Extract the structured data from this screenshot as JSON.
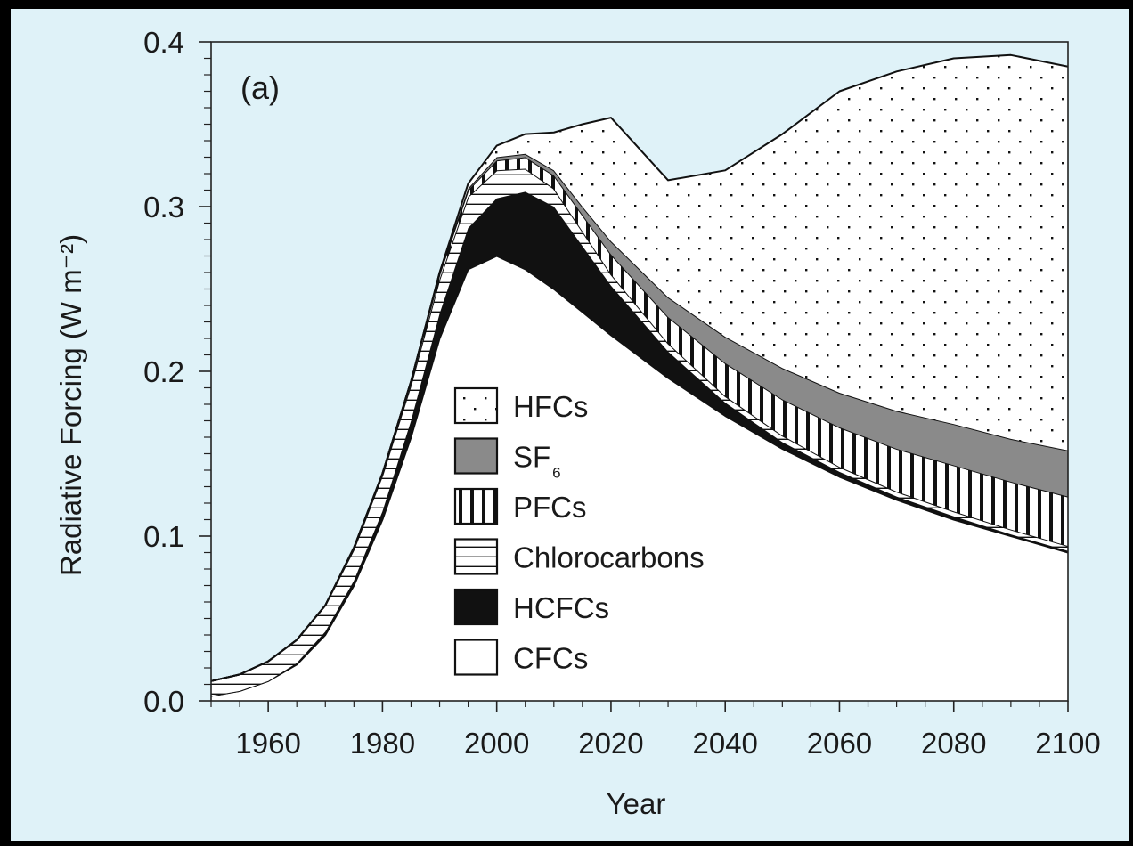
{
  "chart_data": {
    "type": "area",
    "panel_label": "(a)",
    "title": "",
    "xlabel": "Year",
    "ylabel": "Radiative Forcing (W m⁻²)",
    "xlim": [
      1950,
      2100
    ],
    "ylim": [
      0.0,
      0.4
    ],
    "xticks": [
      "1960",
      "1980",
      "2000",
      "2020",
      "2040",
      "2060",
      "2080",
      "2100"
    ],
    "yticks": [
      "0.0",
      "0.1",
      "0.2",
      "0.3",
      "0.4"
    ],
    "x": [
      1950,
      1955,
      1960,
      1965,
      1970,
      1975,
      1980,
      1985,
      1990,
      1995,
      2000,
      2005,
      2010,
      2015,
      2020,
      2030,
      2040,
      2050,
      2060,
      2070,
      2080,
      2090,
      2100
    ],
    "stacking": "cumulative",
    "series": [
      {
        "name": "CFCs",
        "pattern": "white",
        "values": [
          0.003,
          0.006,
          0.012,
          0.022,
          0.04,
          0.07,
          0.11,
          0.16,
          0.22,
          0.262,
          0.27,
          0.262,
          0.25,
          0.236,
          0.222,
          0.196,
          0.173,
          0.153,
          0.136,
          0.122,
          0.11,
          0.1,
          0.09
        ]
      },
      {
        "name": "HCFCs",
        "pattern": "black",
        "values": [
          0.0,
          0.0,
          0.0,
          0.001,
          0.002,
          0.003,
          0.005,
          0.01,
          0.015,
          0.025,
          0.035,
          0.047,
          0.05,
          0.04,
          0.03,
          0.016,
          0.008,
          0.004,
          0.003,
          0.002,
          0.002,
          0.001,
          0.001
        ]
      },
      {
        "name": "Chlorocarbons",
        "pattern": "horizontal-hatch",
        "values": [
          0.009,
          0.01,
          0.012,
          0.014,
          0.016,
          0.019,
          0.022,
          0.022,
          0.021,
          0.019,
          0.017,
          0.014,
          0.011,
          0.009,
          0.007,
          0.005,
          0.004,
          0.004,
          0.003,
          0.003,
          0.003,
          0.003,
          0.003
        ]
      },
      {
        "name": "PFCs",
        "pattern": "vertical-hatch",
        "values": [
          0.0,
          0.0,
          0.0,
          0.0,
          0.0,
          0.001,
          0.001,
          0.002,
          0.003,
          0.004,
          0.006,
          0.007,
          0.008,
          0.01,
          0.012,
          0.016,
          0.02,
          0.022,
          0.024,
          0.026,
          0.028,
          0.029,
          0.03
        ]
      },
      {
        "name": "SF₆",
        "pattern": "gray",
        "values": [
          0.0,
          0.0,
          0.0,
          0.0,
          0.0,
          0.0,
          0.0,
          0.0,
          0.001,
          0.001,
          0.002,
          0.002,
          0.003,
          0.005,
          0.008,
          0.012,
          0.016,
          0.019,
          0.021,
          0.023,
          0.025,
          0.026,
          0.028
        ]
      },
      {
        "name": "HFCs",
        "pattern": "dots",
        "values": [
          0.0,
          0.0,
          0.0,
          0.0,
          0.0,
          0.0,
          0.0,
          0.0,
          0.0,
          0.003,
          0.007,
          0.012,
          0.023,
          0.05,
          0.075,
          0.071,
          0.101,
          0.142,
          0.183,
          0.206,
          0.222,
          0.233,
          0.233
        ]
      }
    ],
    "legend": {
      "placement": "lower-center",
      "entries": [
        {
          "label": "HFCs",
          "pattern": "dots"
        },
        {
          "label": "SF",
          "sub": "6",
          "pattern": "gray"
        },
        {
          "label": "PFCs",
          "pattern": "vertical-hatch"
        },
        {
          "label": "Chlorocarbons",
          "pattern": "horizontal-hatch"
        },
        {
          "label": "HCFCs",
          "pattern": "black"
        },
        {
          "label": "CFCs",
          "pattern": "white"
        }
      ]
    },
    "colors": {
      "background": "#dff2f8",
      "plot_background": "#dff2f8",
      "line": "#111111",
      "gray_fill": "#8a8a8a",
      "black_fill": "#111111",
      "white_fill": "#ffffff"
    }
  }
}
